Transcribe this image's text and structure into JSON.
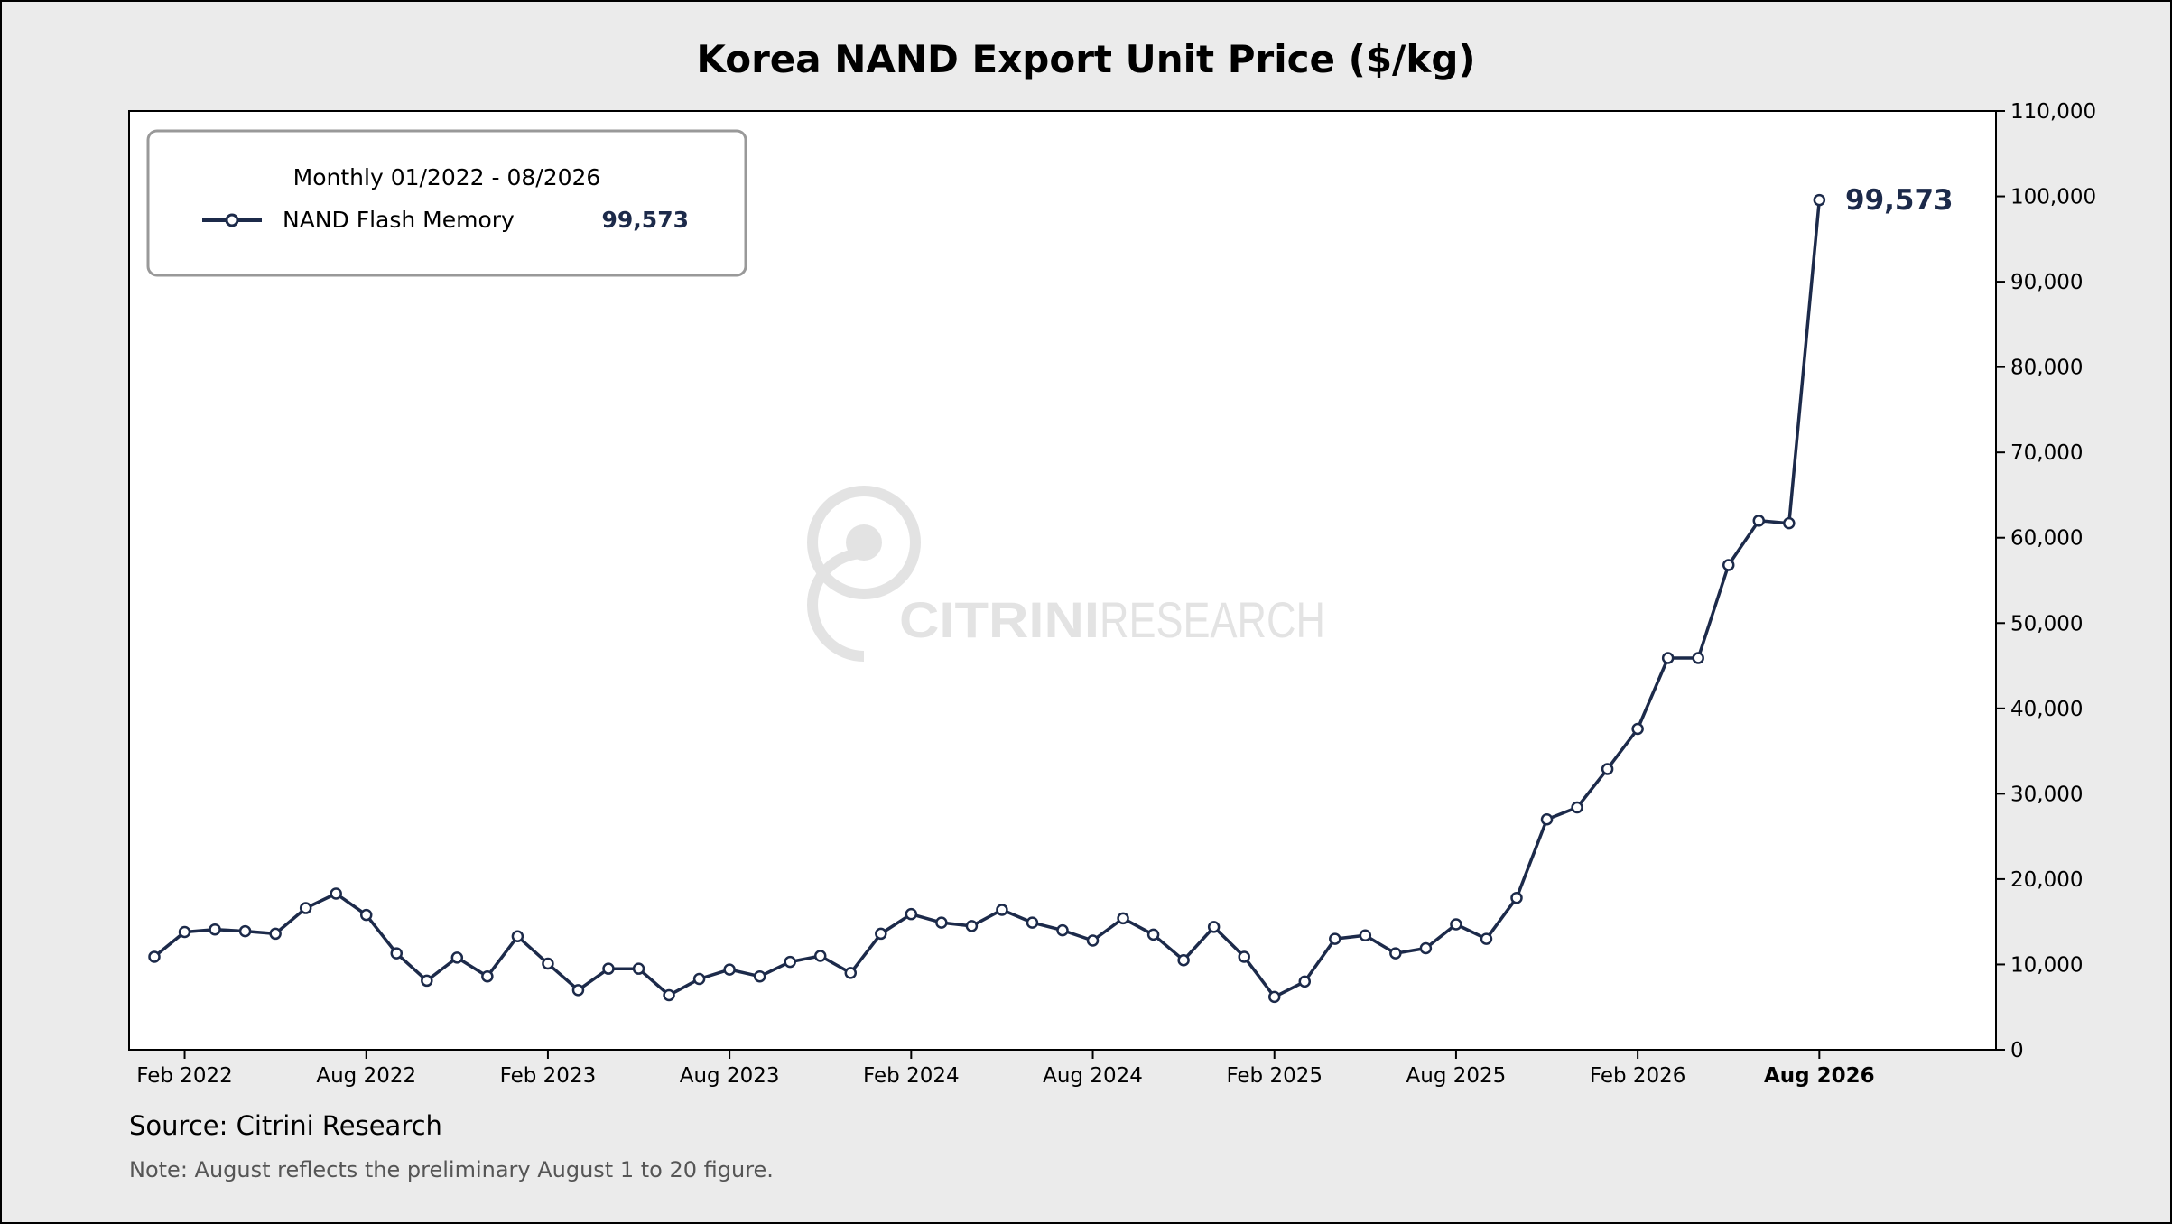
{
  "chart_data": {
    "type": "line",
    "title": "Korea NAND Export Unit Price ($/kg)",
    "xlabel": "",
    "ylabel": "",
    "x_tick_labels": [
      "Feb 2022",
      "Aug 2022",
      "Feb 2023",
      "Aug 2023",
      "Feb 2024",
      "Aug 2024",
      "Feb 2025",
      "Aug 2025",
      "Feb 2026",
      "Aug 2026"
    ],
    "x_tick_bold": "Aug 2026",
    "y_ticks": [
      0,
      10000,
      20000,
      30000,
      40000,
      50000,
      60000,
      70000,
      80000,
      90000,
      100000,
      110000
    ],
    "ylim": [
      0,
      110000
    ],
    "xlim": [
      "2022-01",
      "2027-01"
    ],
    "y_axis_side": "right",
    "grid": false,
    "legend": {
      "placement": "top-left",
      "title": "Monthly 01/2022 - 08/2026",
      "value_label": "99,573"
    },
    "end_label": "99,573",
    "series": [
      {
        "name": "NAND Flash Memory",
        "color": "#1c2a4a",
        "x": [
          "2022-01",
          "2022-02",
          "2022-03",
          "2022-04",
          "2022-05",
          "2022-06",
          "2022-07",
          "2022-08",
          "2022-09",
          "2022-10",
          "2022-11",
          "2022-12",
          "2023-01",
          "2023-02",
          "2023-03",
          "2023-04",
          "2023-05",
          "2023-06",
          "2023-07",
          "2023-08",
          "2023-09",
          "2023-10",
          "2023-11",
          "2023-12",
          "2024-01",
          "2024-02",
          "2024-03",
          "2024-04",
          "2024-05",
          "2024-06",
          "2024-07",
          "2024-08",
          "2024-09",
          "2024-10",
          "2024-11",
          "2024-12",
          "2025-01",
          "2025-02",
          "2025-03",
          "2025-04",
          "2025-05",
          "2025-06",
          "2025-07",
          "2025-08",
          "2025-09",
          "2025-10",
          "2025-11",
          "2025-12",
          "2026-01",
          "2026-02",
          "2026-03",
          "2026-04",
          "2026-05",
          "2026-06",
          "2026-07",
          "2026-08"
        ],
        "values": [
          10900,
          13800,
          14100,
          13900,
          13600,
          16600,
          18300,
          15800,
          11300,
          8100,
          10800,
          8600,
          13300,
          10100,
          7000,
          9500,
          9500,
          6400,
          8300,
          9400,
          8600,
          10300,
          11000,
          9000,
          13600,
          15900,
          14900,
          14500,
          16400,
          14900,
          14000,
          12800,
          15400,
          13500,
          10500,
          14400,
          10900,
          6200,
          8000,
          13000,
          13400,
          11300,
          11900,
          14700,
          13000,
          17800,
          27000,
          28400,
          32900,
          37600,
          45900,
          45900,
          56800,
          62000,
          61700,
          99573
        ]
      }
    ]
  },
  "footer": {
    "source": "Source: Citrini Research",
    "note": "Note: August reflects the preliminary August 1 to 20 figure."
  },
  "watermark": {
    "text_bold": "CITRINI",
    "text_light": "RESEARCH",
    "icon": "person-circle-logo"
  }
}
